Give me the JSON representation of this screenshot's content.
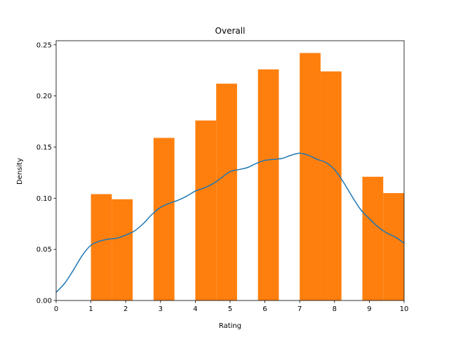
{
  "chart_data": {
    "type": "bar",
    "title": "Overall",
    "xlabel": "Rating",
    "ylabel": "Density",
    "xlim": [
      0,
      10
    ],
    "ylim": [
      0,
      0.254
    ],
    "grid": false,
    "xticks": [
      0,
      1,
      2,
      3,
      4,
      5,
      6,
      7,
      8,
      9,
      10
    ],
    "xtick_labels": [
      "0",
      "1",
      "2",
      "3",
      "4",
      "5",
      "6",
      "7",
      "8",
      "9",
      "10"
    ],
    "yticks": [
      0.0,
      0.05,
      0.1,
      0.15,
      0.2,
      0.25
    ],
    "ytick_labels": [
      "0.00",
      "0.05",
      "0.10",
      "0.15",
      "0.20",
      "0.25"
    ],
    "bar_color": "#ff7f0e",
    "line_color": "#1f77b4",
    "histogram": {
      "bins": [
        {
          "x0": 1.0,
          "x1": 1.6,
          "density": 0.104
        },
        {
          "x0": 1.6,
          "x1": 2.2,
          "density": 0.099
        },
        {
          "x0": 2.8,
          "x1": 3.4,
          "density": 0.159
        },
        {
          "x0": 4.0,
          "x1": 4.6,
          "density": 0.176
        },
        {
          "x0": 4.6,
          "x1": 5.2,
          "density": 0.212
        },
        {
          "x0": 5.8,
          "x1": 6.4,
          "density": 0.226
        },
        {
          "x0": 7.0,
          "x1": 7.6,
          "density": 0.242
        },
        {
          "x0": 7.6,
          "x1": 8.2,
          "density": 0.224
        },
        {
          "x0": 8.8,
          "x1": 9.4,
          "density": 0.121
        },
        {
          "x0": 9.4,
          "x1": 10.0,
          "density": 0.105
        }
      ]
    },
    "density_curve": {
      "x": [
        0.0,
        0.25,
        0.5,
        0.75,
        1.0,
        1.25,
        1.5,
        1.75,
        2.0,
        2.25,
        2.5,
        2.75,
        3.0,
        3.25,
        3.5,
        3.75,
        4.0,
        4.25,
        4.5,
        4.75,
        5.0,
        5.25,
        5.5,
        5.75,
        6.0,
        6.25,
        6.5,
        6.75,
        7.0,
        7.25,
        7.5,
        7.75,
        8.0,
        8.25,
        8.5,
        8.75,
        9.0,
        9.25,
        9.5,
        9.75,
        10.0
      ],
      "y": [
        0.008,
        0.017,
        0.03,
        0.044,
        0.054,
        0.058,
        0.06,
        0.061,
        0.064,
        0.068,
        0.075,
        0.084,
        0.091,
        0.095,
        0.098,
        0.102,
        0.107,
        0.11,
        0.114,
        0.12,
        0.126,
        0.128,
        0.13,
        0.134,
        0.137,
        0.138,
        0.139,
        0.142,
        0.144,
        0.142,
        0.138,
        0.135,
        0.128,
        0.116,
        0.102,
        0.089,
        0.08,
        0.072,
        0.066,
        0.062,
        0.056
      ]
    }
  }
}
